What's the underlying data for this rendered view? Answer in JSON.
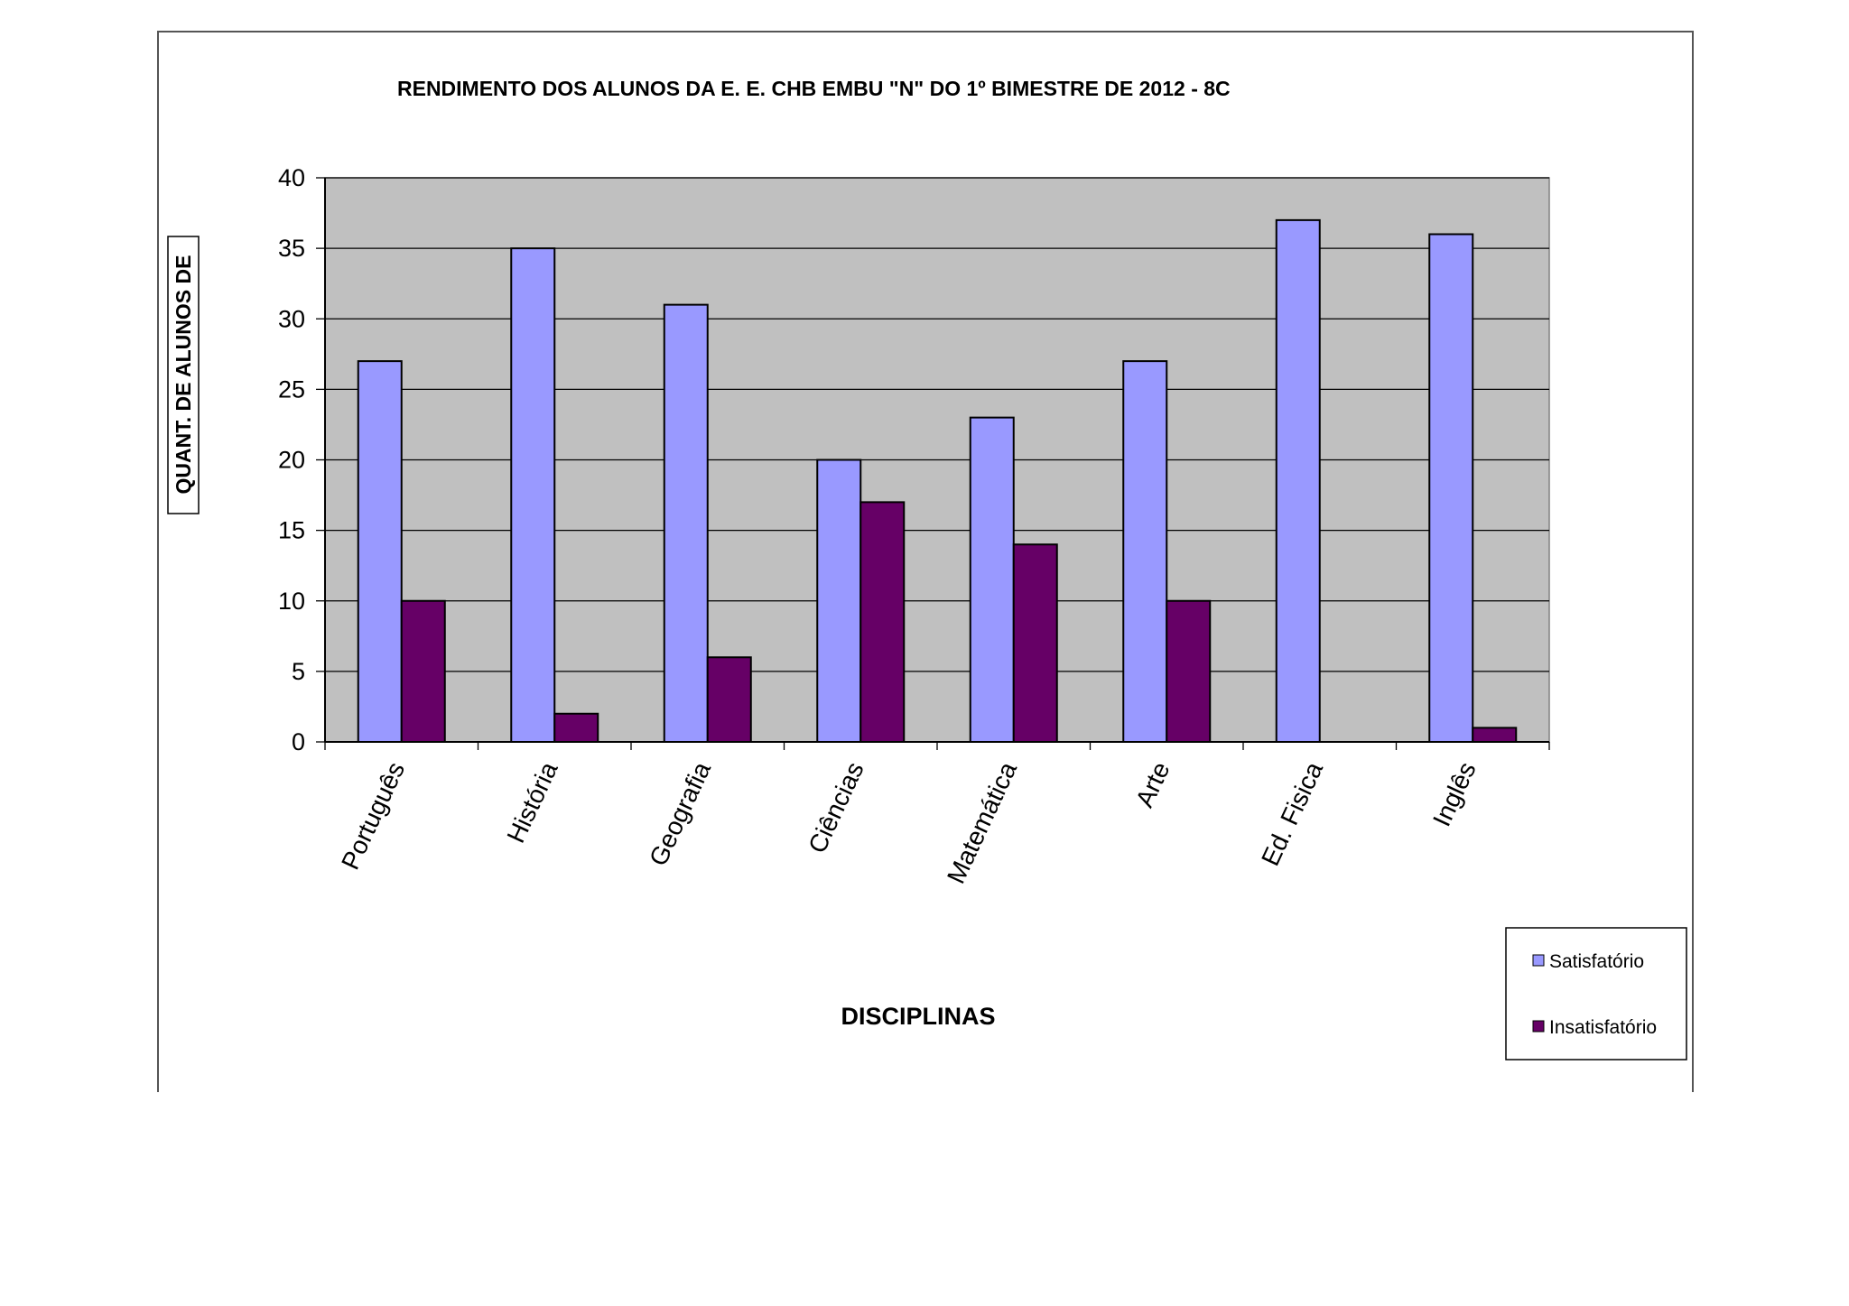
{
  "chart_data": {
    "type": "bar",
    "title": "RENDIMENTO DOS ALUNOS DA E. E. CHB EMBU \"N\" DO 1º BIMESTRE DE 2012 - 8C",
    "xlabel": "DISCIPLINAS",
    "ylabel": "QUANT. DE  ALUNOS DE",
    "ylim": [
      0,
      40
    ],
    "yticks": [
      0,
      5,
      10,
      15,
      20,
      25,
      30,
      35,
      40
    ],
    "grid": true,
    "legend_position": "bottom-right",
    "categories": [
      "Português",
      "História",
      "Geografia",
      "Ciências",
      "Matemática",
      "Arte",
      "Ed. Fisica",
      "Inglês"
    ],
    "series": [
      {
        "name": "Satisfatório",
        "color": "#9999ff",
        "values": [
          27,
          35,
          31,
          20,
          23,
          27,
          37,
          36
        ]
      },
      {
        "name": "Insatisfatório",
        "color": "#660066",
        "values": [
          10,
          2,
          6,
          17,
          14,
          10,
          0,
          1
        ]
      }
    ],
    "plot_background": "#c0c0c0"
  }
}
